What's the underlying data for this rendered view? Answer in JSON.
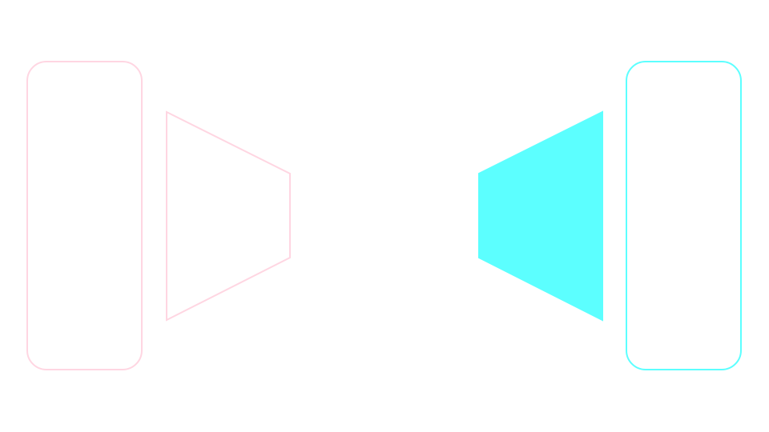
{
  "colors": {
    "background": "#ffffff",
    "left_outline": "#ffd6e2",
    "right_accent": "#5cffff"
  },
  "shapes": {
    "left_panel": {
      "kind": "rounded-rectangle",
      "style": "outline",
      "color_key": "left_outline"
    },
    "left_trapezoid": {
      "kind": "trapezoid",
      "orientation": "wide-left",
      "style": "outline",
      "color_key": "left_outline"
    },
    "right_trapezoid": {
      "kind": "trapezoid",
      "orientation": "wide-right",
      "style": "filled",
      "color_key": "right_accent"
    },
    "right_panel": {
      "kind": "rounded-rectangle",
      "style": "outline",
      "color_key": "right_accent"
    }
  }
}
